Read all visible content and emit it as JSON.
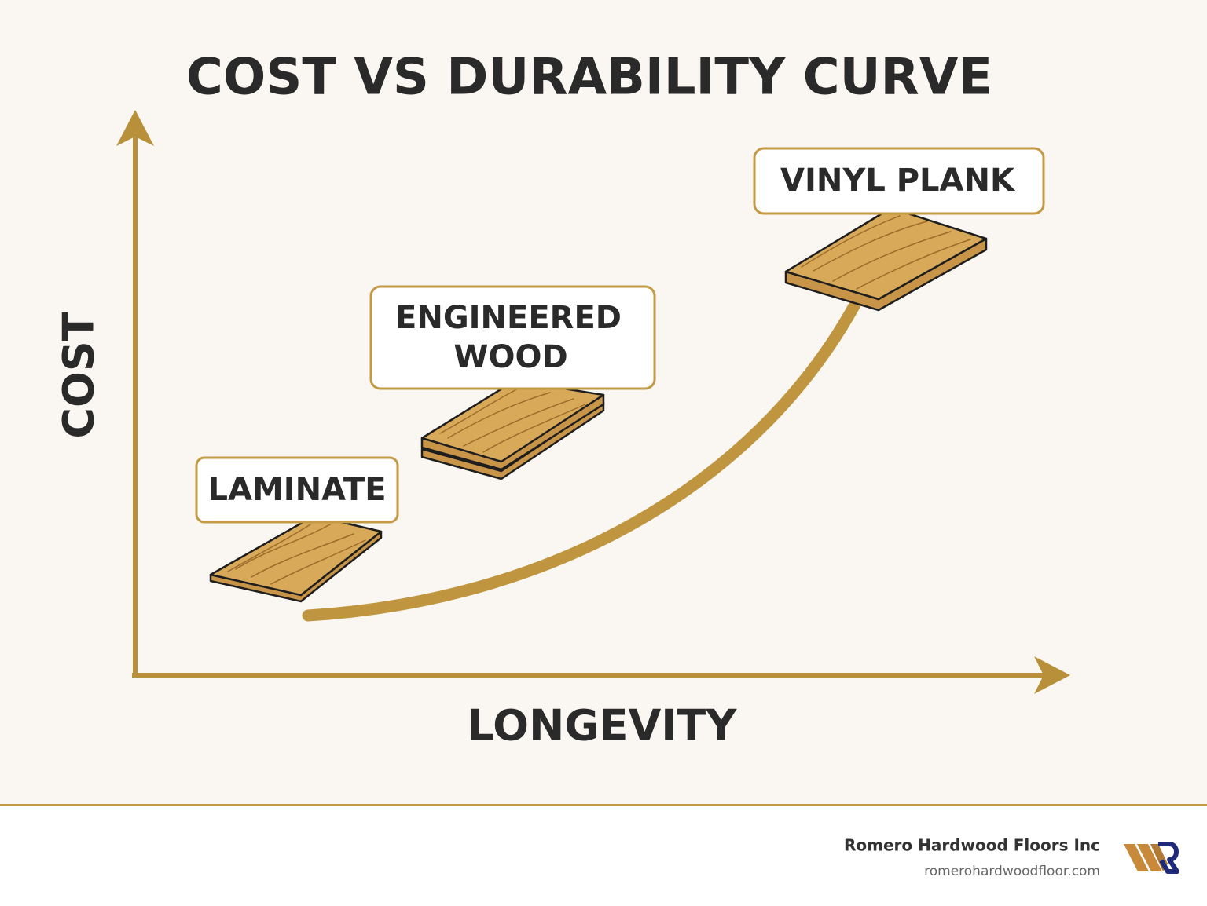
{
  "header": {
    "title": "COST VS DURABILITY CURVE"
  },
  "axes": {
    "y_label": "COST",
    "x_label": "LONGEVITY"
  },
  "nodes": [
    {
      "label_lines": [
        "LAMINATE"
      ]
    },
    {
      "label_lines": [
        "ENGINEERED",
        "WOOD"
      ]
    },
    {
      "label_lines": [
        "VINYL PLANK"
      ]
    }
  ],
  "footer": {
    "company": "Romero Hardwood Floors Inc",
    "website": "romerohardwoodfloor.com"
  }
}
